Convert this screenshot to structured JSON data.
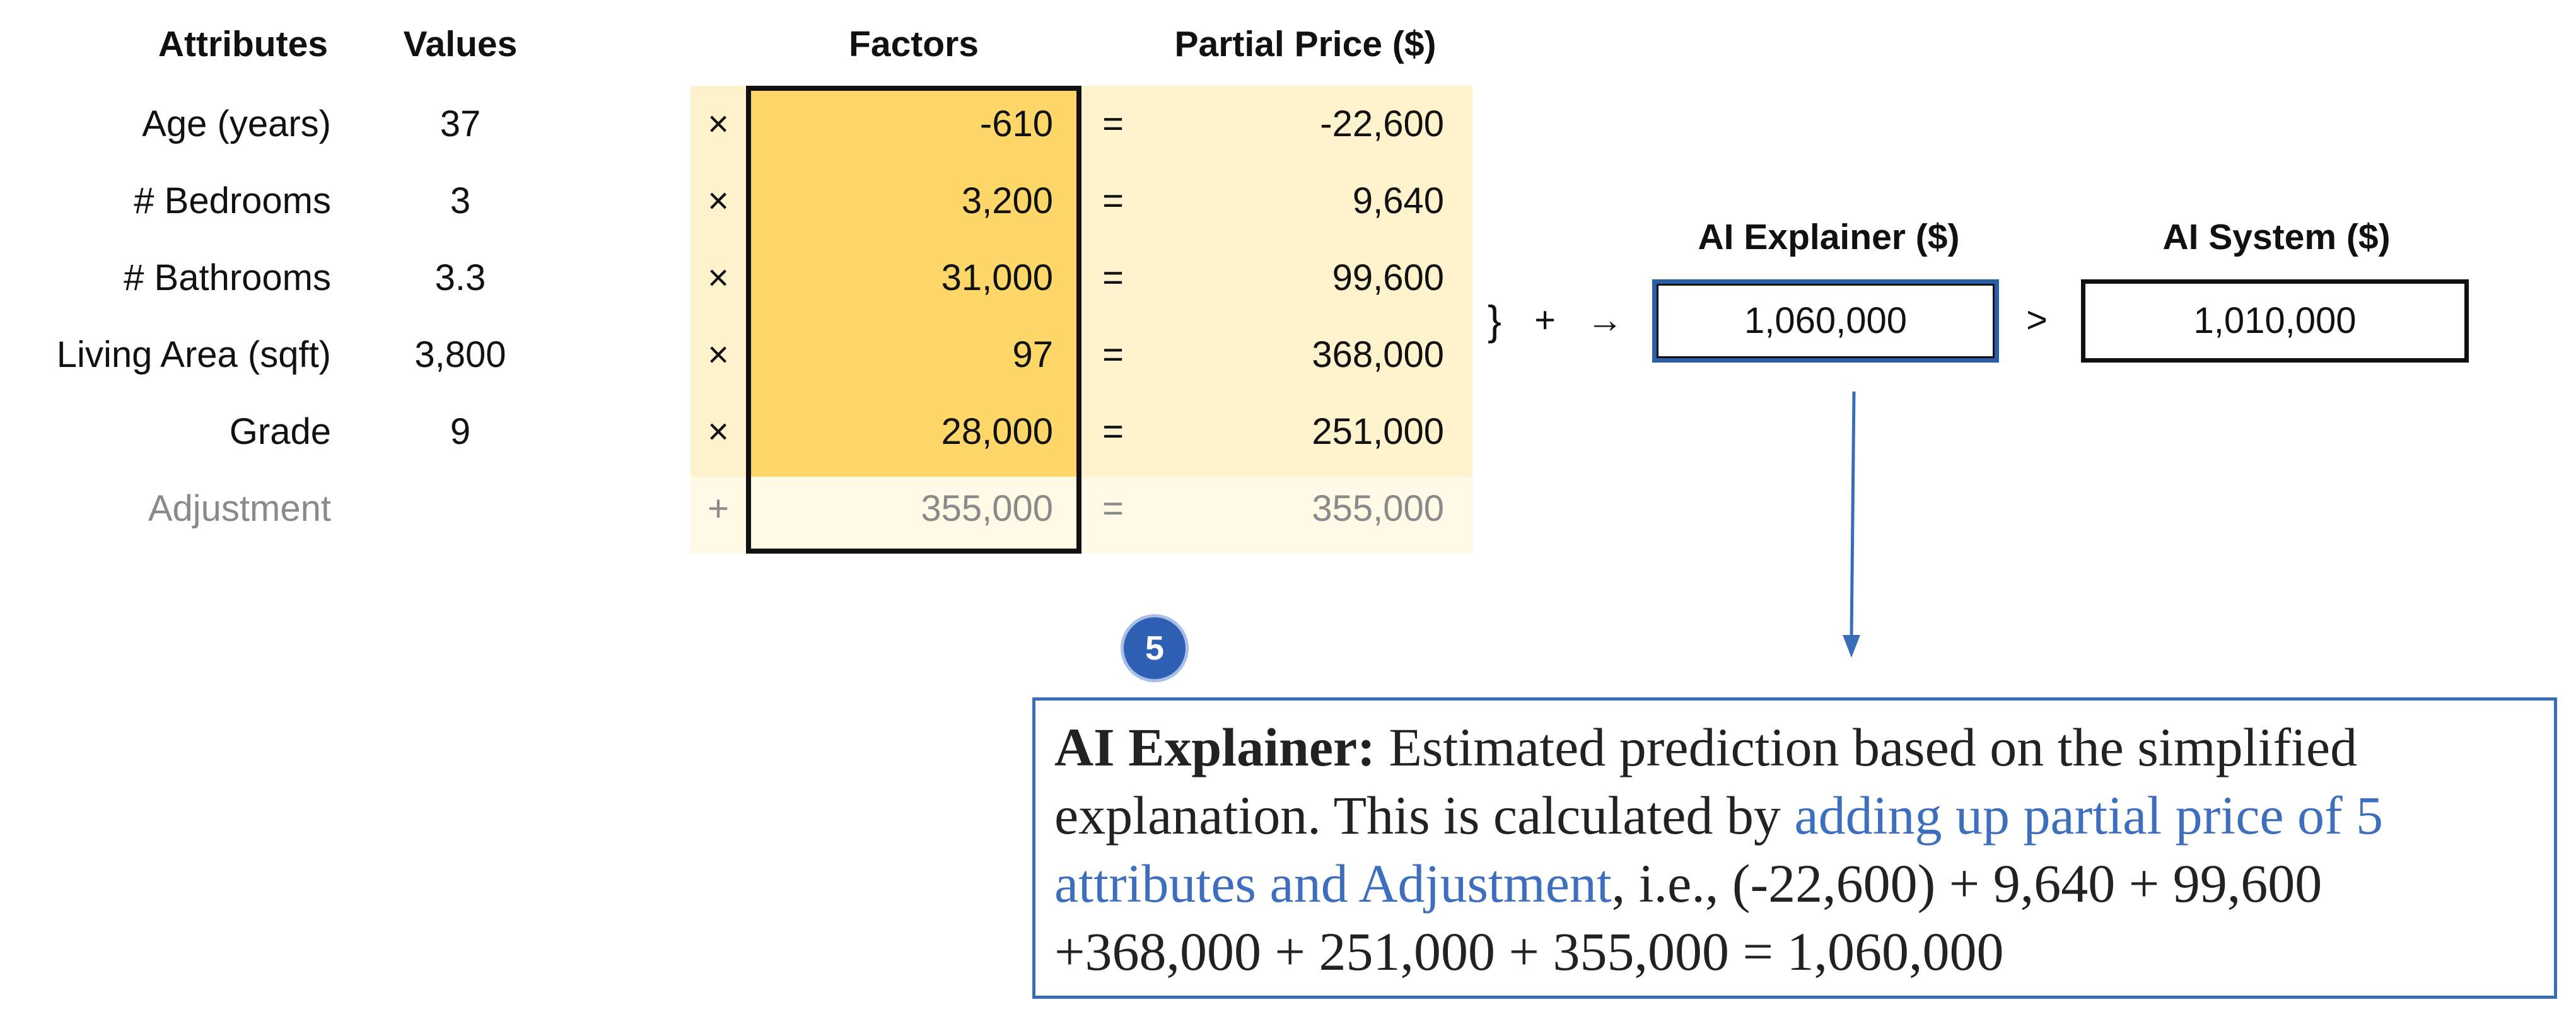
{
  "headers": {
    "attributes": "Attributes",
    "values": "Values",
    "factors": "Factors",
    "partial_price": "Partial Price ($)",
    "ai_explainer": "AI Explainer ($)",
    "ai_system": "AI System ($)"
  },
  "rows": [
    {
      "attribute": "Age (years)",
      "value": "37",
      "op": "×",
      "factor": "-610",
      "eq": "=",
      "partial": "-22,600"
    },
    {
      "attribute": "# Bedrooms",
      "value": "3",
      "op": "×",
      "factor": "3,200",
      "eq": "=",
      "partial": "9,640"
    },
    {
      "attribute": "# Bathrooms",
      "value": "3.3",
      "op": "×",
      "factor": "31,000",
      "eq": "=",
      "partial": "99,600"
    },
    {
      "attribute": "Living Area (sqft)",
      "value": "3,800",
      "op": "×",
      "factor": "97",
      "eq": "=",
      "partial": "368,000"
    },
    {
      "attribute": "Grade",
      "value": "9",
      "op": "×",
      "factor": "28,000",
      "eq": "=",
      "partial": "251,000"
    }
  ],
  "adjustment": {
    "attribute": "Adjustment",
    "op": "+",
    "factor": "355,000",
    "eq": "=",
    "partial": "355,000"
  },
  "sum_symbols": {
    "brace": "}",
    "plus": "+",
    "arrow": "→",
    "greater": ">"
  },
  "ai_explainer_value": "1,060,000",
  "ai_system_value": "1,010,000",
  "step_badge": "5",
  "explanation": {
    "lead": "AI Explainer:",
    "text1": " Estimated prediction based on the simplified explanation. This is calculated by ",
    "highlight": "adding up partial price of 5 attributes and Adjustment",
    "text2": ", i.e., (-22,600) + 9,640 + 99,600 +368,000 + 251,000 + 355,000 = 1,060,000"
  },
  "colors": {
    "factor_fill": "#fdd868",
    "op_fill": "#fdf2cc",
    "partial_fill": "#fef3cc",
    "adjustment_fill": "#fff9e6",
    "accent_blue": "#3a6db8"
  }
}
